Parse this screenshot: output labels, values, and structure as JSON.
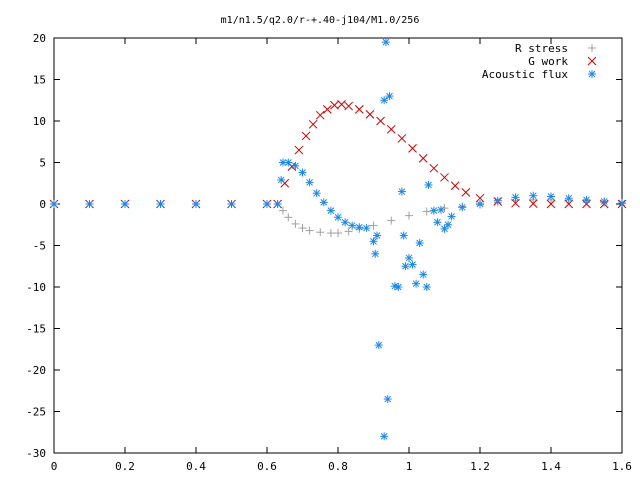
{
  "chart_data": {
    "type": "scatter",
    "title": "m1/n1.5/q2.0/r-+.40-j104/M1.0/256",
    "xlabel": "",
    "ylabel": "",
    "xlim": [
      0,
      1.6
    ],
    "ylim": [
      -30,
      20
    ],
    "x_ticks": [
      "0",
      "0.2",
      "0.4",
      "0.6",
      "0.8",
      "1",
      "1.2",
      "1.4",
      "1.6"
    ],
    "y_ticks": [
      "20",
      "15",
      "10",
      "5",
      "0",
      "-5",
      "-10",
      "-15",
      "-20",
      "-25",
      "-30"
    ],
    "grid": false,
    "legend_position": "top-right",
    "series": [
      {
        "name": "R stress",
        "marker": "plus",
        "color": "#a0a0a0",
        "points": [
          [
            0.0,
            0
          ],
          [
            0.1,
            0
          ],
          [
            0.2,
            0
          ],
          [
            0.3,
            0
          ],
          [
            0.4,
            0
          ],
          [
            0.5,
            0
          ],
          [
            0.6,
            0
          ],
          [
            0.63,
            0
          ],
          [
            0.645,
            -0.8
          ],
          [
            0.66,
            -1.6
          ],
          [
            0.68,
            -2.4
          ],
          [
            0.7,
            -2.9
          ],
          [
            0.72,
            -3.2
          ],
          [
            0.75,
            -3.4
          ],
          [
            0.78,
            -3.5
          ],
          [
            0.8,
            -3.5
          ],
          [
            0.83,
            -3.3
          ],
          [
            0.86,
            -3.0
          ],
          [
            0.9,
            -2.6
          ],
          [
            0.95,
            -2.0
          ],
          [
            1.0,
            -1.4
          ],
          [
            1.05,
            -0.9
          ],
          [
            1.1,
            -0.5
          ],
          [
            1.15,
            -0.3
          ],
          [
            1.2,
            -0.1
          ],
          [
            1.25,
            0.2
          ],
          [
            1.3,
            0.4
          ],
          [
            1.35,
            0.5
          ],
          [
            1.4,
            0.5
          ],
          [
            1.45,
            0.5
          ],
          [
            1.5,
            0.4
          ],
          [
            1.55,
            0.2
          ],
          [
            1.6,
            0.1
          ]
        ]
      },
      {
        "name": "G work",
        "marker": "cross",
        "color": "#cc0000",
        "points": [
          [
            0.0,
            0
          ],
          [
            0.1,
            0
          ],
          [
            0.2,
            0
          ],
          [
            0.3,
            0
          ],
          [
            0.4,
            0
          ],
          [
            0.5,
            0
          ],
          [
            0.6,
            0
          ],
          [
            0.63,
            0
          ],
          [
            0.65,
            2.5
          ],
          [
            0.67,
            4.5
          ],
          [
            0.69,
            6.5
          ],
          [
            0.71,
            8.2
          ],
          [
            0.73,
            9.6
          ],
          [
            0.75,
            10.7
          ],
          [
            0.77,
            11.4
          ],
          [
            0.79,
            11.9
          ],
          [
            0.81,
            12.0
          ],
          [
            0.83,
            11.8
          ],
          [
            0.86,
            11.4
          ],
          [
            0.89,
            10.8
          ],
          [
            0.92,
            10.0
          ],
          [
            0.95,
            9.0
          ],
          [
            0.98,
            7.9
          ],
          [
            1.01,
            6.7
          ],
          [
            1.04,
            5.5
          ],
          [
            1.07,
            4.3
          ],
          [
            1.1,
            3.2
          ],
          [
            1.13,
            2.2
          ],
          [
            1.16,
            1.4
          ],
          [
            1.2,
            0.7
          ],
          [
            1.25,
            0.3
          ],
          [
            1.3,
            0.1
          ],
          [
            1.35,
            0.05
          ],
          [
            1.4,
            0
          ],
          [
            1.45,
            0
          ],
          [
            1.5,
            0
          ],
          [
            1.55,
            0
          ],
          [
            1.6,
            0
          ]
        ]
      },
      {
        "name": "Acoustic flux",
        "marker": "star",
        "color": "#1e88e5",
        "points": [
          [
            0.0,
            0
          ],
          [
            0.1,
            0
          ],
          [
            0.2,
            0
          ],
          [
            0.3,
            0
          ],
          [
            0.4,
            0
          ],
          [
            0.5,
            0
          ],
          [
            0.6,
            0
          ],
          [
            0.63,
            0
          ],
          [
            0.64,
            2.9
          ],
          [
            0.645,
            5.0
          ],
          [
            0.66,
            5.0
          ],
          [
            0.68,
            4.6
          ],
          [
            0.7,
            3.8
          ],
          [
            0.72,
            2.6
          ],
          [
            0.74,
            1.3
          ],
          [
            0.76,
            0.2
          ],
          [
            0.78,
            -0.8
          ],
          [
            0.8,
            -1.6
          ],
          [
            0.82,
            -2.2
          ],
          [
            0.84,
            -2.6
          ],
          [
            0.86,
            -2.8
          ],
          [
            0.88,
            -2.9
          ],
          [
            0.9,
            -4.5
          ],
          [
            0.905,
            -6.0
          ],
          [
            0.91,
            -3.8
          ],
          [
            0.915,
            -17
          ],
          [
            0.93,
            12.5
          ],
          [
            0.935,
            19.5
          ],
          [
            0.945,
            13.0
          ],
          [
            0.94,
            -23.5
          ],
          [
            0.93,
            -28
          ],
          [
            0.96,
            -9.9
          ],
          [
            0.97,
            -10.0
          ],
          [
            0.98,
            1.5
          ],
          [
            0.985,
            -3.8
          ],
          [
            0.99,
            -7.5
          ],
          [
            1.0,
            -6.5
          ],
          [
            1.01,
            -7.3
          ],
          [
            1.02,
            -9.6
          ],
          [
            1.03,
            -4.7
          ],
          [
            1.04,
            -8.5
          ],
          [
            1.05,
            -10.0
          ],
          [
            1.055,
            2.3
          ],
          [
            1.07,
            -0.8
          ],
          [
            1.08,
            -2.2
          ],
          [
            1.09,
            -0.7
          ],
          [
            1.1,
            -3.0
          ],
          [
            1.11,
            -2.5
          ],
          [
            1.12,
            -1.5
          ],
          [
            1.15,
            -0.4
          ],
          [
            1.2,
            0.0
          ],
          [
            1.25,
            0.4
          ],
          [
            1.3,
            0.8
          ],
          [
            1.35,
            1.0
          ],
          [
            1.4,
            0.9
          ],
          [
            1.45,
            0.7
          ],
          [
            1.5,
            0.5
          ],
          [
            1.55,
            0.3
          ],
          [
            1.6,
            0.1
          ]
        ]
      }
    ]
  }
}
